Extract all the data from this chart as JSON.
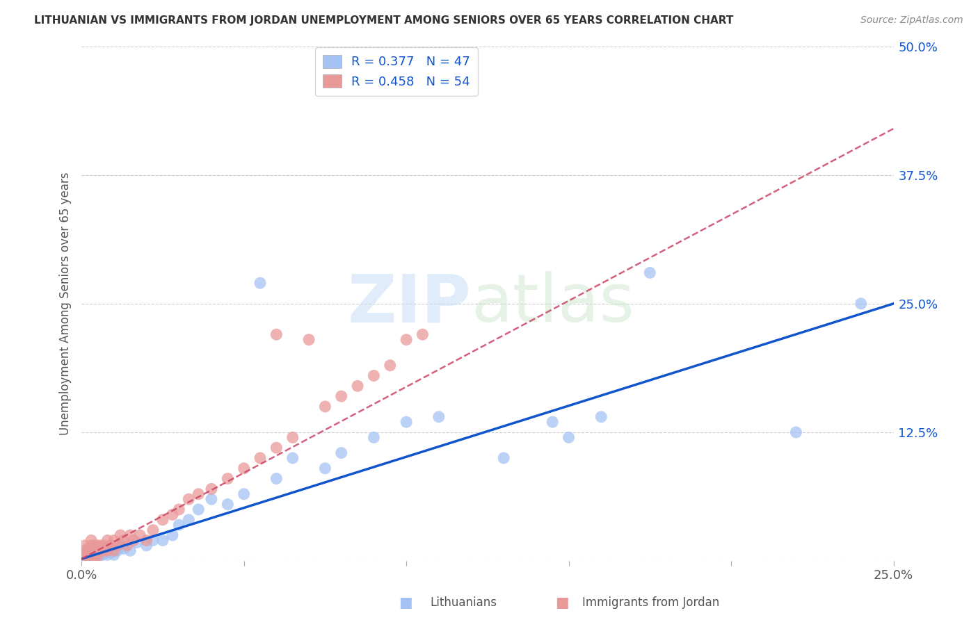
{
  "title": "LITHUANIAN VS IMMIGRANTS FROM JORDAN UNEMPLOYMENT AMONG SENIORS OVER 65 YEARS CORRELATION CHART",
  "source": "Source: ZipAtlas.com",
  "ylabel": "Unemployment Among Seniors over 65 years",
  "xlim": [
    0,
    0.25
  ],
  "ylim": [
    0,
    0.5
  ],
  "xticks": [
    0.0,
    0.05,
    0.1,
    0.15,
    0.2,
    0.25
  ],
  "yticks": [
    0.0,
    0.125,
    0.25,
    0.375,
    0.5
  ],
  "xticklabels": [
    "0.0%",
    "",
    "",
    "",
    "",
    "25.0%"
  ],
  "yticklabels": [
    "",
    "12.5%",
    "25.0%",
    "37.5%",
    "50.0%"
  ],
  "legend_r_blue": "R = 0.377",
  "legend_n_blue": "N = 47",
  "legend_r_pink": "R = 0.458",
  "legend_n_pink": "N = 54",
  "blue_color": "#a4c2f4",
  "pink_color": "#ea9999",
  "blue_line_color": "#1155cc",
  "pink_line_color": "#cc4466",
  "blue_scatter_x": [
    0.001,
    0.002,
    0.003,
    0.003,
    0.004,
    0.004,
    0.005,
    0.005,
    0.006,
    0.006,
    0.007,
    0.007,
    0.008,
    0.008,
    0.009,
    0.01,
    0.01,
    0.011,
    0.012,
    0.013,
    0.015,
    0.017,
    0.02,
    0.022,
    0.025,
    0.028,
    0.03,
    0.033,
    0.036,
    0.04,
    0.045,
    0.05,
    0.055,
    0.06,
    0.065,
    0.075,
    0.08,
    0.09,
    0.1,
    0.11,
    0.13,
    0.145,
    0.15,
    0.16,
    0.175,
    0.22,
    0.24
  ],
  "blue_scatter_y": [
    0.003,
    0.005,
    0.004,
    0.008,
    0.006,
    0.01,
    0.004,
    0.008,
    0.005,
    0.01,
    0.007,
    0.012,
    0.006,
    0.01,
    0.008,
    0.006,
    0.012,
    0.01,
    0.015,
    0.012,
    0.01,
    0.018,
    0.015,
    0.02,
    0.02,
    0.025,
    0.035,
    0.04,
    0.05,
    0.06,
    0.055,
    0.065,
    0.27,
    0.08,
    0.1,
    0.09,
    0.105,
    0.12,
    0.135,
    0.14,
    0.1,
    0.135,
    0.12,
    0.14,
    0.28,
    0.125,
    0.25
  ],
  "pink_scatter_x": [
    0.001,
    0.001,
    0.001,
    0.002,
    0.002,
    0.002,
    0.003,
    0.003,
    0.003,
    0.003,
    0.004,
    0.004,
    0.004,
    0.005,
    0.005,
    0.005,
    0.006,
    0.006,
    0.007,
    0.007,
    0.008,
    0.008,
    0.009,
    0.01,
    0.01,
    0.011,
    0.012,
    0.013,
    0.014,
    0.015,
    0.016,
    0.018,
    0.02,
    0.022,
    0.025,
    0.028,
    0.03,
    0.033,
    0.036,
    0.04,
    0.045,
    0.05,
    0.055,
    0.06,
    0.065,
    0.07,
    0.075,
    0.08,
    0.085,
    0.09,
    0.095,
    0.1,
    0.105,
    0.06
  ],
  "pink_scatter_y": [
    0.005,
    0.01,
    0.015,
    0.005,
    0.008,
    0.012,
    0.005,
    0.01,
    0.015,
    0.02,
    0.005,
    0.01,
    0.015,
    0.005,
    0.01,
    0.015,
    0.01,
    0.015,
    0.01,
    0.015,
    0.01,
    0.02,
    0.015,
    0.01,
    0.02,
    0.015,
    0.025,
    0.02,
    0.015,
    0.025,
    0.02,
    0.025,
    0.02,
    0.03,
    0.04,
    0.045,
    0.05,
    0.06,
    0.065,
    0.07,
    0.08,
    0.09,
    0.1,
    0.11,
    0.12,
    0.215,
    0.15,
    0.16,
    0.17,
    0.18,
    0.19,
    0.215,
    0.22,
    0.22
  ],
  "background_color": "#ffffff",
  "grid_color": "#cccccc",
  "blue_line_x0": 0.0,
  "blue_line_y0": 0.002,
  "blue_line_x1": 0.25,
  "blue_line_y1": 0.25,
  "pink_line_x0": 0.0,
  "pink_line_y0": 0.002,
  "pink_line_x1": 0.25,
  "pink_line_y1": 0.42
}
